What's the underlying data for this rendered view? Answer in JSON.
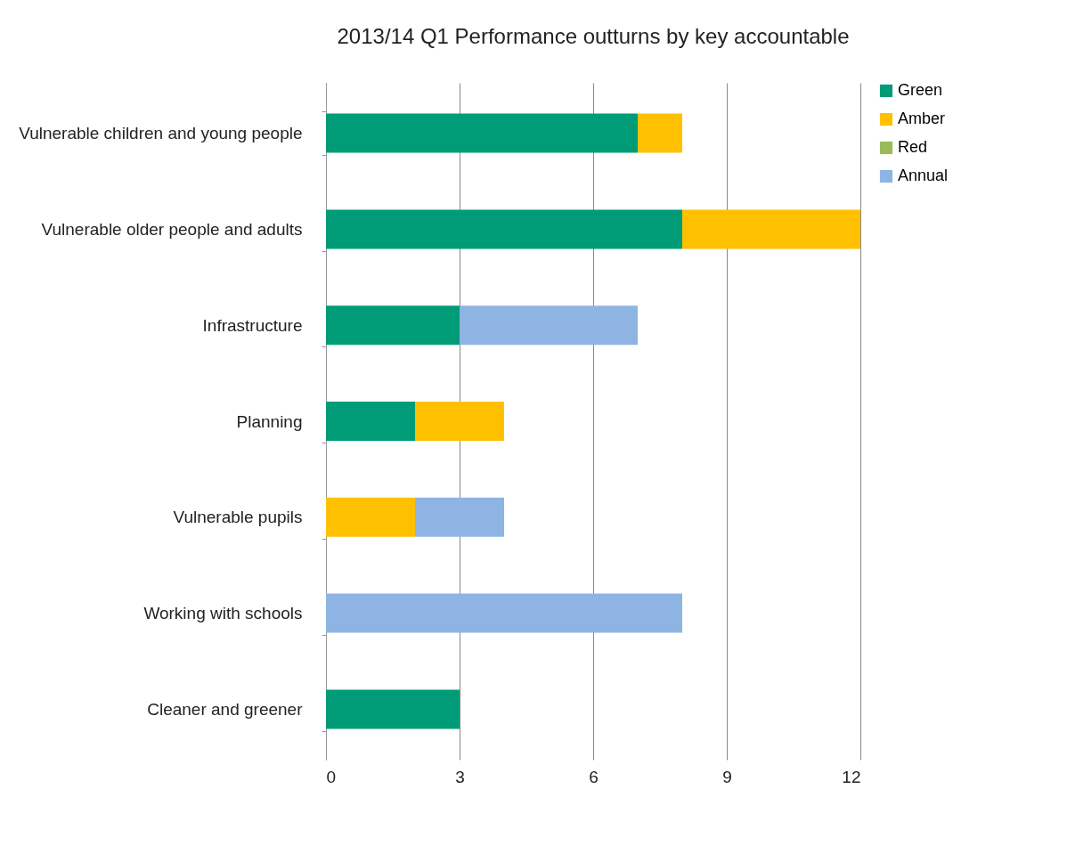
{
  "chart_data": {
    "type": "bar",
    "title": "2013/14 Q1 Performance outturns by key accountable",
    "orientation": "horizontal",
    "stacked": true,
    "categories": [
      "Vulnerable children and young people",
      "Vulnerable older people and adults",
      "Infrastructure",
      "Planning",
      "Vulnerable pupils",
      "Working with schools",
      "Cleaner and greener"
    ],
    "series": [
      {
        "name": "Green",
        "color": "#009b77",
        "values": [
          7,
          8,
          3,
          2,
          null,
          null,
          3
        ]
      },
      {
        "name": "Amber",
        "color": "#ffc000",
        "values": [
          1,
          4,
          null,
          2,
          2,
          null,
          null
        ]
      },
      {
        "name": "Red",
        "color": "#9bbb59",
        "values": [
          null,
          null,
          null,
          null,
          null,
          null,
          null
        ]
      },
      {
        "name": "Annual",
        "color": "#8eb4e3",
        "values": [
          null,
          null,
          4,
          null,
          2,
          8,
          null
        ]
      }
    ],
    "xlim": [
      0,
      12
    ],
    "xticks": [
      0,
      3,
      6,
      9,
      12
    ],
    "grid": "x",
    "legend": "right"
  }
}
